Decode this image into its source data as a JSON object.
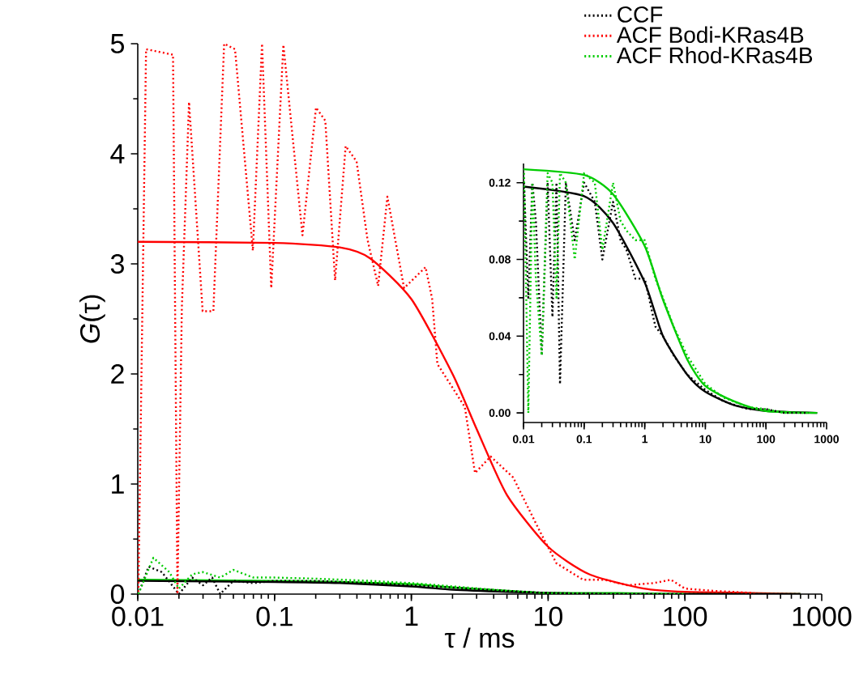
{
  "chart_data": [
    {
      "type": "line",
      "xlabel": "τ / ms",
      "ylabel": "*G*(τ)",
      "log": "x",
      "legend": "top right",
      "xlim": [
        0.01,
        1000
      ],
      "xticks": [
        0.01,
        0.1,
        1,
        10,
        100,
        1000
      ],
      "ylim": [
        0,
        5
      ],
      "yticks": [
        0,
        1,
        2,
        3,
        4,
        5
      ],
      "series": [
        {
          "name": "CCF",
          "color": "#000000",
          "line_style": "dotted",
          "x": [
            0.0101,
            0.012,
            0.015,
            0.02,
            0.025,
            0.03,
            0.035,
            0.04,
            0.05,
            0.07,
            0.1,
            0.2,
            0.5,
            1,
            2,
            5,
            10,
            30,
            100,
            700
          ],
          "values": [
            0.0,
            0.25,
            0.2,
            0.0,
            0.15,
            0.08,
            0.15,
            0.0,
            0.12,
            0.1,
            0.12,
            0.12,
            0.1,
            0.08,
            0.06,
            0.03,
            0.01,
            0.0,
            0.0,
            0.0
          ]
        },
        {
          "name": "ACF Bodi-KRas4B",
          "color": "#ff0000",
          "line_style": "dotted",
          "x": [
            0.0101,
            0.0115,
            0.0181,
            0.0195,
            0.021,
            0.0237,
            0.0298,
            0.0357,
            0.0428,
            0.0514,
            0.0694,
            0.081,
            0.0946,
            0.116,
            0.16,
            0.201,
            0.235,
            0.277,
            0.331,
            0.398,
            0.478,
            0.572,
            0.668,
            0.885,
            1.27,
            1.42,
            1.55,
            2.46,
            2.92,
            3.8,
            5.55,
            8.7,
            11.5,
            18,
            26,
            38,
            59,
            79,
            100,
            160,
            320
          ],
          "values": [
            0.02,
            4.95,
            4.9,
            0.0,
            2.6,
            4.47,
            2.57,
            2.57,
            5.0,
            4.95,
            3.12,
            5.0,
            2.78,
            4.99,
            3.26,
            4.42,
            4.3,
            2.85,
            4.07,
            3.93,
            3.22,
            2.8,
            3.61,
            2.78,
            2.97,
            2.68,
            2.09,
            1.7,
            1.1,
            1.25,
            1.06,
            0.57,
            0.28,
            0.13,
            0.13,
            0.08,
            0.1,
            0.13,
            0.05,
            0.03,
            0.01
          ]
        },
        {
          "name": "ACF Rhod-KRas4B",
          "color": "#00cc00",
          "line_style": "dotted",
          "x": [
            0.0101,
            0.013,
            0.017,
            0.02,
            0.025,
            0.03,
            0.04,
            0.05,
            0.07,
            0.1,
            0.2,
            0.5,
            1,
            2,
            5,
            10,
            30,
            100
          ],
          "values": [
            0.0,
            0.33,
            0.2,
            0.05,
            0.18,
            0.2,
            0.15,
            0.22,
            0.15,
            0.15,
            0.14,
            0.12,
            0.1,
            0.07,
            0.03,
            0.01,
            0.0,
            0.0
          ]
        },
        {
          "color": "#ff0000",
          "line_style": "solid",
          "x": [
            0.01,
            0.1,
            0.3,
            0.5,
            1,
            2,
            3,
            5,
            10,
            20,
            50,
            100,
            300,
            700
          ],
          "values": [
            3.2,
            3.19,
            3.15,
            3.05,
            2.68,
            2.0,
            1.5,
            0.9,
            0.43,
            0.18,
            0.05,
            0.02,
            0.01,
            0.0
          ]
        },
        {
          "color": "#00cc00",
          "line_style": "solid",
          "x": [
            0.01,
            0.1,
            0.3,
            1,
            2,
            5,
            10,
            30,
            100,
            700
          ],
          "values": [
            0.13,
            0.12,
            0.11,
            0.09,
            0.06,
            0.03,
            0.01,
            0.01,
            0.0,
            0.0
          ]
        },
        {
          "color": "#000000",
          "line_style": "solid",
          "x": [
            0.01,
            0.1,
            0.3,
            1,
            2,
            5,
            10,
            30,
            100,
            700
          ],
          "values": [
            0.12,
            0.11,
            0.1,
            0.07,
            0.04,
            0.02,
            0.01,
            0.0,
            0.0,
            0.0
          ]
        }
      ]
    },
    {
      "type": "line",
      "log": "x",
      "xlim": [
        0.01,
        1000
      ],
      "xticks": [
        0.01,
        0.1,
        1,
        10,
        100,
        1000
      ],
      "ylim": [
        -0.005,
        0.13
      ],
      "yticks": [
        {
          "value": 0,
          "label": "0.00"
        },
        {
          "value": 0.04,
          "label": "0.04"
        },
        {
          "value": 0.08,
          "label": "0.08"
        },
        {
          "value": 0.12,
          "label": "0.12"
        }
      ],
      "series": [
        {
          "color": "#000000",
          "line_style": "dotted",
          "x": [
            0.0102,
            0.012,
            0.014,
            0.016,
            0.02,
            0.025,
            0.03,
            0.035,
            0.04,
            0.05,
            0.07,
            0.1,
            0.15,
            0.2,
            0.3,
            0.4,
            0.5,
            0.7,
            1,
            1.5,
            2,
            3,
            5,
            10,
            20,
            50,
            100,
            200,
            500
          ],
          "values": [
            0.12,
            0.06,
            0.12,
            0.1,
            0.03,
            0.12,
            0.05,
            0.12,
            0.015,
            0.12,
            0.09,
            0.12,
            0.11,
            0.08,
            0.11,
            0.09,
            0.085,
            0.07,
            0.07,
            0.045,
            0.04,
            0.03,
            0.02,
            0.012,
            0.006,
            0.002,
            0.002,
            0.0,
            0.0
          ]
        },
        {
          "color": "#00cc00",
          "line_style": "dotted",
          "x": [
            0.0102,
            0.012,
            0.014,
            0.016,
            0.02,
            0.025,
            0.03,
            0.035,
            0.04,
            0.05,
            0.07,
            0.1,
            0.15,
            0.2,
            0.3,
            0.4,
            0.5,
            0.7,
            1,
            1.5,
            2,
            3,
            5,
            10,
            20,
            50,
            100,
            200,
            500
          ],
          "values": [
            0.125,
            0.0,
            0.12,
            0.07,
            0.03,
            0.125,
            0.12,
            0.06,
            0.125,
            0.12,
            0.08,
            0.125,
            0.12,
            0.085,
            0.12,
            0.1,
            0.095,
            0.09,
            0.09,
            0.07,
            0.06,
            0.045,
            0.03,
            0.015,
            0.008,
            0.003,
            0.002,
            0.0,
            0.0
          ]
        },
        {
          "color": "#000000",
          "line_style": "solid",
          "x": [
            0.01,
            0.1,
            0.3,
            1,
            2,
            5,
            10,
            30,
            100,
            700
          ],
          "values": [
            0.118,
            0.113,
            0.099,
            0.068,
            0.04,
            0.02,
            0.011,
            0.004,
            0.001,
            0.0
          ]
        },
        {
          "color": "#00cc00",
          "line_style": "solid",
          "x": [
            0.01,
            0.1,
            0.3,
            1,
            2,
            5,
            10,
            30,
            100,
            700
          ],
          "values": [
            0.127,
            0.124,
            0.114,
            0.087,
            0.059,
            0.028,
            0.014,
            0.006,
            0.001,
            0.0
          ]
        }
      ]
    }
  ]
}
